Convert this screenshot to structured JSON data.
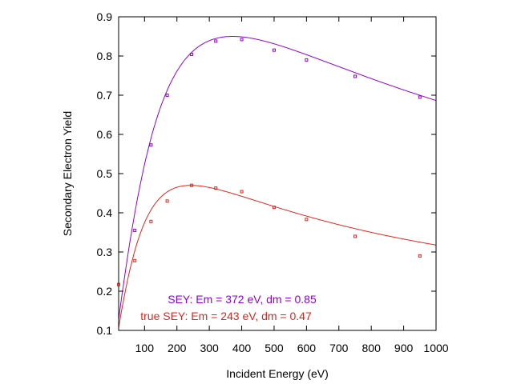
{
  "chart_data": {
    "type": "scatter",
    "title": "",
    "xlabel": "Incident Energy (eV)",
    "ylabel": "Secondary Electron Yield",
    "xlim": [
      20,
      1000
    ],
    "ylim": [
      0.1,
      0.9
    ],
    "x_ticks": [
      100,
      200,
      300,
      400,
      500,
      600,
      700,
      800,
      900,
      1000
    ],
    "y_ticks": [
      0.1,
      0.2,
      0.3,
      0.4,
      0.5,
      0.6,
      0.7,
      0.8,
      0.9
    ],
    "grid": false,
    "series": [
      {
        "color": "#9400d3",
        "points": {
          "x": [
            70,
            120,
            170,
            245,
            320,
            400,
            500,
            600,
            750,
            950
          ],
          "y": [
            0.355,
            0.573,
            0.7,
            0.804,
            0.838,
            0.842,
            0.815,
            0.79,
            0.748,
            0.695
          ]
        },
        "fit": {
          "Em": 372,
          "dm": 0.85
        }
      },
      {
        "color": "#e3241b",
        "points": {
          "x": [
            20,
            70,
            120,
            170,
            245,
            320,
            400,
            500,
            600,
            750,
            950
          ],
          "y": [
            0.217,
            0.278,
            0.378,
            0.43,
            0.47,
            0.463,
            0.454,
            0.414,
            0.383,
            0.34,
            0.29
          ]
        },
        "fit": {
          "Em": 243,
          "dm": 0.47
        }
      }
    ],
    "annotations": [
      {
        "text": "SEY: Em = 372 eV, dm = 0.85",
        "color": "#9400d3"
      },
      {
        "text": "true SEY: Em = 243 eV, dm = 0.47",
        "color": "#e3241b"
      }
    ]
  }
}
